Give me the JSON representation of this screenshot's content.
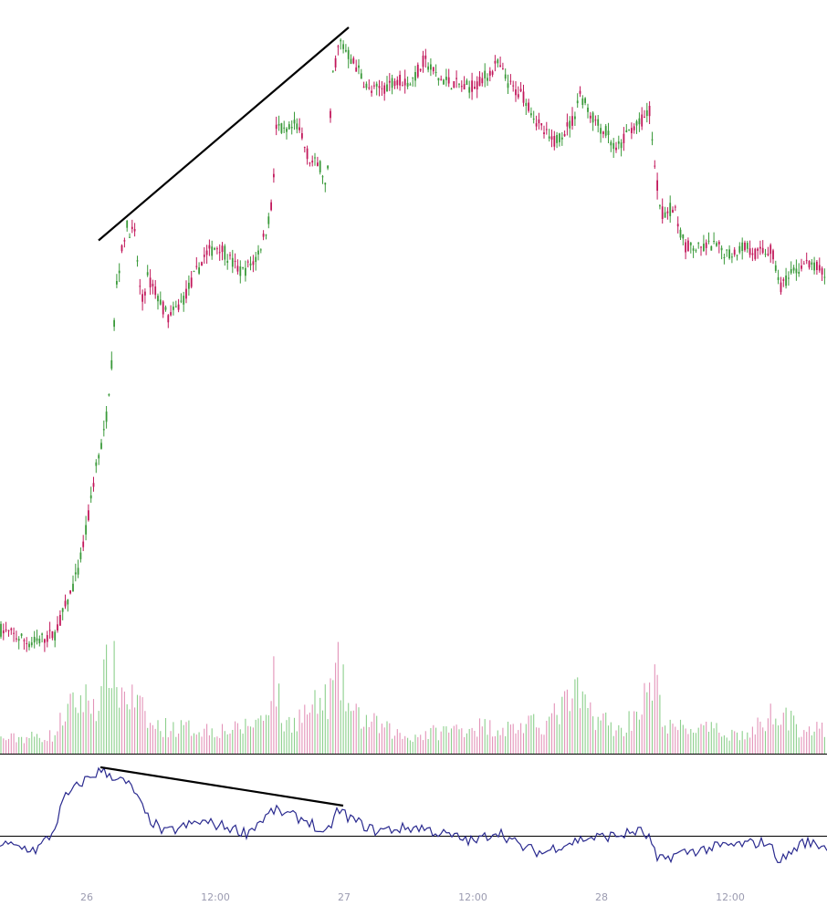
{
  "chart_data": {
    "type": "candlestick",
    "panels": [
      "price",
      "volume",
      "oscillator"
    ],
    "x_ticks": [
      "26",
      "12:00",
      "27",
      "12:00",
      "28",
      "12:00"
    ],
    "grid": false,
    "legend": "none",
    "colors": {
      "up": "#3a9a3a",
      "down": "#c2185b",
      "volume_up": "#8ccf8c",
      "volume_down": "#e393b8",
      "oscillator": "#2a2a8f",
      "trendline": "#000000",
      "separator": "#000000",
      "tick_text": "#9b9bb0"
    },
    "price_anchors": [
      [
        0,
        0.03
      ],
      [
        34,
        0.0
      ],
      [
        60,
        0.02
      ],
      [
        72,
        0.08
      ],
      [
        85,
        0.15
      ],
      [
        95,
        0.25
      ],
      [
        105,
        0.38
      ],
      [
        115,
        0.46
      ],
      [
        122,
        0.6
      ],
      [
        128,
        0.78
      ],
      [
        138,
        0.9
      ],
      [
        148,
        0.88
      ],
      [
        155,
        0.73
      ],
      [
        162,
        0.79
      ],
      [
        170,
        0.76
      ],
      [
        185,
        0.7
      ],
      [
        200,
        0.74
      ],
      [
        215,
        0.8
      ],
      [
        225,
        0.84
      ],
      [
        240,
        0.86
      ],
      [
        255,
        0.82
      ],
      [
        265,
        0.8
      ],
      [
        280,
        0.83
      ],
      [
        290,
        0.88
      ],
      [
        298,
        0.95
      ],
      [
        303,
        1.12
      ],
      [
        312,
        1.1
      ],
      [
        325,
        1.12
      ],
      [
        340,
        1.04
      ],
      [
        352,
        1.03
      ],
      [
        358,
        0.97
      ],
      [
        364,
        1.22
      ],
      [
        372,
        1.3
      ],
      [
        382,
        1.27
      ],
      [
        392,
        1.24
      ],
      [
        405,
        1.19
      ],
      [
        420,
        1.2
      ],
      [
        435,
        1.22
      ],
      [
        450,
        1.21
      ],
      [
        465,
        1.26
      ],
      [
        480,
        1.22
      ],
      [
        495,
        1.21
      ],
      [
        510,
        1.2
      ],
      [
        525,
        1.21
      ],
      [
        545,
        1.25
      ],
      [
        560,
        1.2
      ],
      [
        575,
        1.18
      ],
      [
        590,
        1.12
      ],
      [
        605,
        1.08
      ],
      [
        615,
        1.1
      ],
      [
        628,
        1.13
      ],
      [
        635,
        1.19
      ],
      [
        645,
        1.15
      ],
      [
        655,
        1.12
      ],
      [
        665,
        1.1
      ],
      [
        675,
        1.06
      ],
      [
        690,
        1.11
      ],
      [
        700,
        1.12
      ],
      [
        712,
        1.15
      ],
      [
        718,
        1.01
      ],
      [
        725,
        0.93
      ],
      [
        738,
        0.94
      ],
      [
        750,
        0.86
      ],
      [
        765,
        0.85
      ],
      [
        780,
        0.86
      ],
      [
        800,
        0.84
      ],
      [
        815,
        0.86
      ],
      [
        830,
        0.84
      ],
      [
        845,
        0.85
      ],
      [
        855,
        0.77
      ],
      [
        865,
        0.79
      ],
      [
        880,
        0.82
      ],
      [
        895,
        0.81
      ],
      [
        906,
        0.79
      ]
    ],
    "volume_anchors": [
      [
        0,
        0.08
      ],
      [
        60,
        0.1
      ],
      [
        70,
        0.22
      ],
      [
        90,
        0.3
      ],
      [
        110,
        0.28
      ],
      [
        120,
        0.55
      ],
      [
        130,
        0.35
      ],
      [
        150,
        0.28
      ],
      [
        165,
        0.15
      ],
      [
        200,
        0.14
      ],
      [
        260,
        0.13
      ],
      [
        290,
        0.2
      ],
      [
        300,
        0.45
      ],
      [
        310,
        0.15
      ],
      [
        360,
        0.3
      ],
      [
        370,
        0.45
      ],
      [
        385,
        0.22
      ],
      [
        420,
        0.14
      ],
      [
        445,
        0.09
      ],
      [
        480,
        0.12
      ],
      [
        520,
        0.15
      ],
      [
        560,
        0.14
      ],
      [
        600,
        0.17
      ],
      [
        630,
        0.32
      ],
      [
        650,
        0.22
      ],
      [
        680,
        0.12
      ],
      [
        718,
        0.38
      ],
      [
        730,
        0.14
      ],
      [
        760,
        0.14
      ],
      [
        820,
        0.1
      ],
      [
        855,
        0.26
      ],
      [
        870,
        0.15
      ],
      [
        906,
        0.12
      ]
    ],
    "oscillator_anchors": [
      [
        0,
        0.2
      ],
      [
        40,
        0.15
      ],
      [
        58,
        0.3
      ],
      [
        70,
        0.6
      ],
      [
        90,
        0.75
      ],
      [
        110,
        0.85
      ],
      [
        125,
        0.8
      ],
      [
        145,
        0.7
      ],
      [
        160,
        0.45
      ],
      [
        180,
        0.3
      ],
      [
        220,
        0.4
      ],
      [
        250,
        0.35
      ],
      [
        270,
        0.3
      ],
      [
        300,
        0.5
      ],
      [
        320,
        0.45
      ],
      [
        340,
        0.4
      ],
      [
        355,
        0.25
      ],
      [
        370,
        0.5
      ],
      [
        390,
        0.4
      ],
      [
        410,
        0.32
      ],
      [
        460,
        0.35
      ],
      [
        480,
        0.3
      ],
      [
        520,
        0.22
      ],
      [
        545,
        0.32
      ],
      [
        570,
        0.18
      ],
      [
        595,
        0.12
      ],
      [
        610,
        0.18
      ],
      [
        640,
        0.25
      ],
      [
        680,
        0.28
      ],
      [
        700,
        0.32
      ],
      [
        712,
        0.25
      ],
      [
        720,
        0.05
      ],
      [
        745,
        0.12
      ],
      [
        790,
        0.18
      ],
      [
        840,
        0.22
      ],
      [
        855,
        0.05
      ],
      [
        880,
        0.22
      ],
      [
        906,
        0.18
      ]
    ],
    "oscillator_zero": 0.27,
    "price_trendline": [
      [
        108,
        0.87
      ],
      [
        382,
        1.33
      ]
    ],
    "oscillator_trendline": [
      [
        110,
        0.88
      ],
      [
        376,
        0.54
      ]
    ]
  }
}
